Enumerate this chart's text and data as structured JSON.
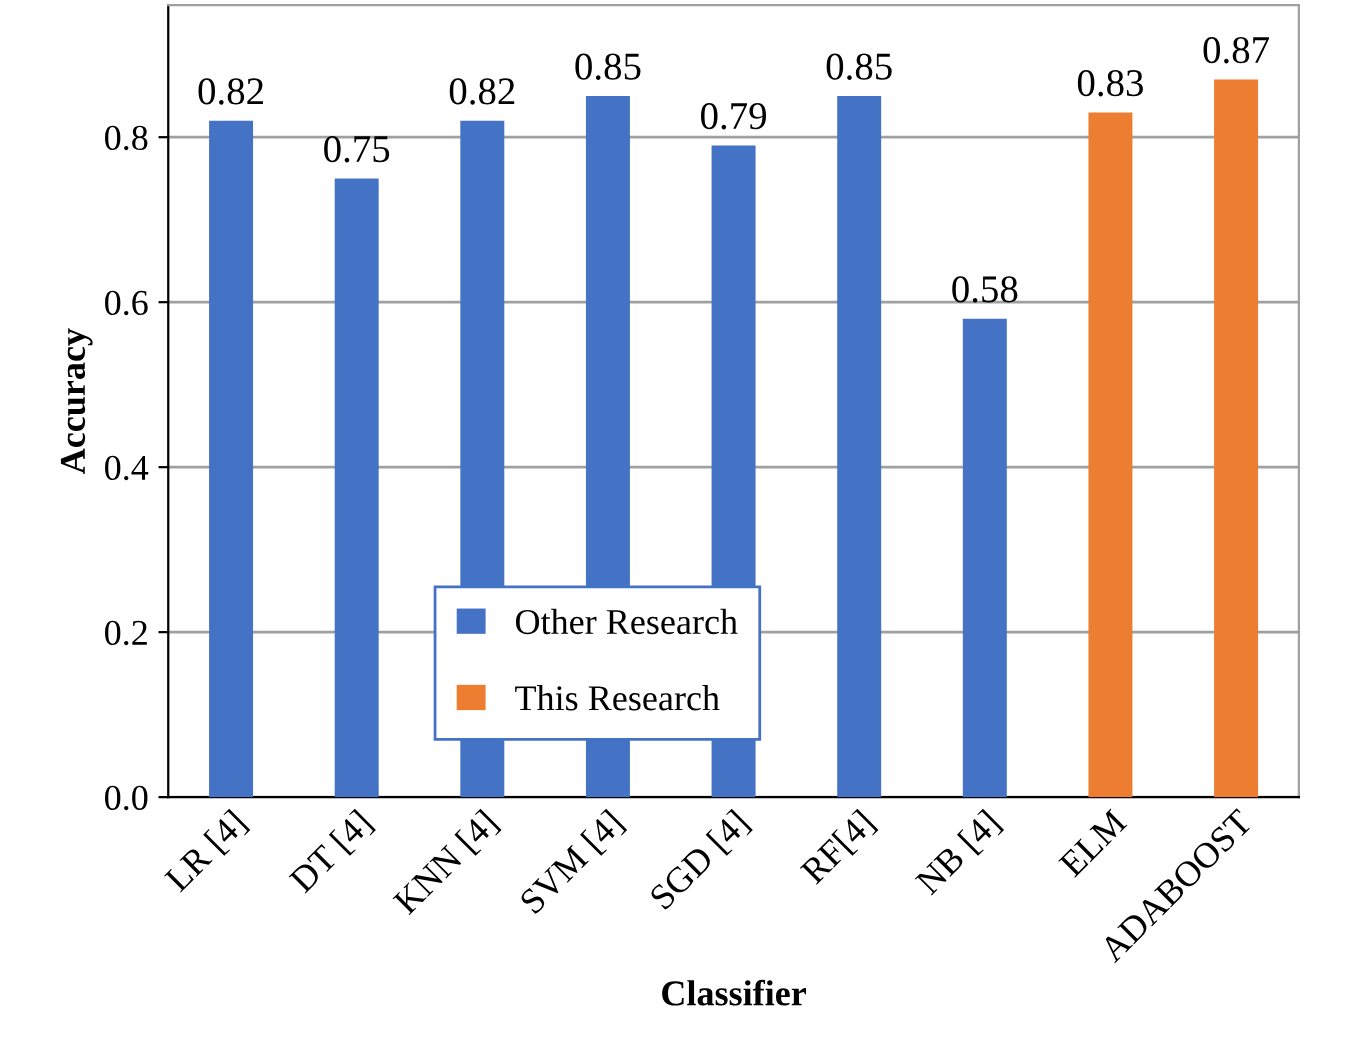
{
  "chart_data": {
    "type": "bar",
    "xlabel": "Classifier",
    "ylabel": "Accuracy",
    "categories": [
      "LR [4]",
      "DT [4]",
      "KNN [4]",
      "SVM [4]",
      "SGD [4]",
      "RF[4]",
      "NB [4]",
      "ELM",
      "ADABOOST"
    ],
    "series": [
      {
        "name": "Other Research",
        "color": "#4472c4",
        "values": [
          0.82,
          0.75,
          0.82,
          0.85,
          0.79,
          0.85,
          0.58,
          null,
          null
        ]
      },
      {
        "name": "This Research",
        "color": "#ed7d31",
        "values": [
          null,
          null,
          null,
          null,
          null,
          null,
          null,
          0.83,
          0.87
        ]
      }
    ],
    "ylim": [
      0,
      0.96
    ],
    "yticks": [
      {
        "value": 0,
        "label": "0.0"
      },
      {
        "value": 0.2,
        "label": "0.2"
      },
      {
        "value": 0.4,
        "label": "0.4"
      },
      {
        "value": 0.6,
        "label": "0.6"
      },
      {
        "value": 0.8,
        "label": "0.8"
      }
    ],
    "grid": "y",
    "legend": "bottom left",
    "data_labels": true
  }
}
